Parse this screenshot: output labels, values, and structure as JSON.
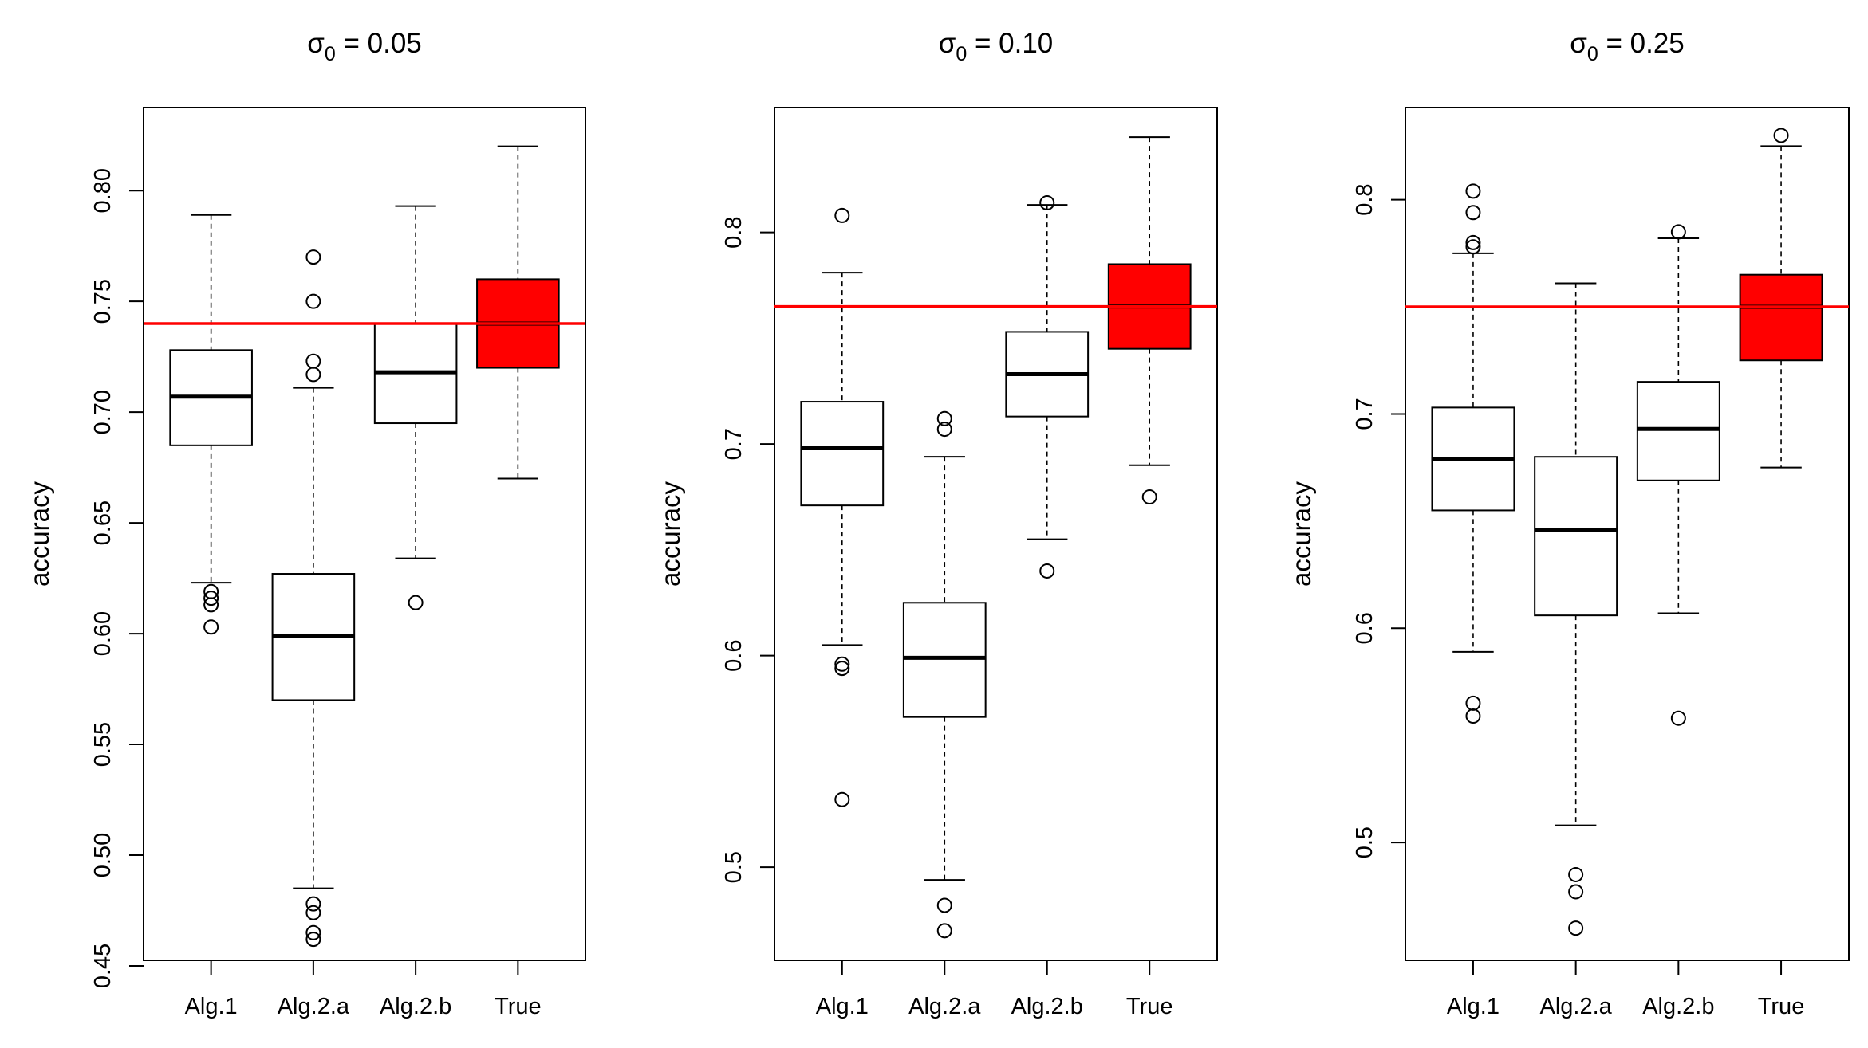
{
  "chart_data": [
    {
      "type": "box",
      "title_symbol": "σ",
      "title_subscript": "0",
      "title_rest": " = 0.05",
      "xlabel": "",
      "ylabel": "accuracy",
      "ylim": [
        0.4525,
        0.8375
      ],
      "yticks": [
        0.45,
        0.5,
        0.55,
        0.6,
        0.65,
        0.7,
        0.75,
        0.8
      ],
      "ytick_labels": [
        "0.45",
        "0.50",
        "0.55",
        "0.60",
        "0.65",
        "0.70",
        "0.75",
        "0.80"
      ],
      "categories": [
        "Alg.1",
        "Alg.2.a",
        "Alg.2.b",
        "True"
      ],
      "reference_line": 0.74,
      "boxes": [
        {
          "whisker_low": 0.623,
          "q1": 0.685,
          "median": 0.707,
          "q3": 0.728,
          "whisker_high": 0.789,
          "outliers": [
            0.603,
            0.613,
            0.616,
            0.619
          ],
          "fill": "#ffffff"
        },
        {
          "whisker_low": 0.485,
          "q1": 0.57,
          "median": 0.599,
          "q3": 0.627,
          "whisker_high": 0.711,
          "outliers": [
            0.462,
            0.465,
            0.474,
            0.478,
            0.717,
            0.723,
            0.75,
            0.77
          ],
          "fill": "#ffffff"
        },
        {
          "whisker_low": 0.634,
          "q1": 0.695,
          "median": 0.718,
          "q3": 0.74,
          "whisker_high": 0.793,
          "outliers": [
            0.614
          ],
          "fill": "#ffffff"
        },
        {
          "whisker_low": 0.67,
          "q1": 0.72,
          "median": 0.74,
          "q3": 0.76,
          "whisker_high": 0.82,
          "outliers": [],
          "fill": "#ff0000"
        }
      ]
    },
    {
      "type": "box",
      "title_symbol": "σ",
      "title_subscript": "0",
      "title_rest": " = 0.10",
      "xlabel": "",
      "ylabel": "accuracy",
      "ylim": [
        0.456,
        0.859
      ],
      "yticks": [
        0.5,
        0.6,
        0.7,
        0.8
      ],
      "ytick_labels": [
        "0.5",
        "0.6",
        "0.7",
        "0.8"
      ],
      "categories": [
        "Alg.1",
        "Alg.2.a",
        "Alg.2.b",
        "True"
      ],
      "reference_line": 0.765,
      "boxes": [
        {
          "whisker_low": 0.605,
          "q1": 0.671,
          "median": 0.698,
          "q3": 0.72,
          "whisker_high": 0.781,
          "outliers": [
            0.532,
            0.594,
            0.596,
            0.808
          ],
          "fill": "#ffffff"
        },
        {
          "whisker_low": 0.494,
          "q1": 0.571,
          "median": 0.599,
          "q3": 0.625,
          "whisker_high": 0.694,
          "outliers": [
            0.47,
            0.482,
            0.707,
            0.712
          ],
          "fill": "#ffffff"
        },
        {
          "whisker_low": 0.655,
          "q1": 0.713,
          "median": 0.733,
          "q3": 0.753,
          "whisker_high": 0.813,
          "outliers": [
            0.64,
            0.814
          ],
          "fill": "#ffffff"
        },
        {
          "whisker_low": 0.69,
          "q1": 0.745,
          "median": 0.765,
          "q3": 0.785,
          "whisker_high": 0.845,
          "outliers": [
            0.675
          ],
          "fill": "#ff0000"
        }
      ]
    },
    {
      "type": "box",
      "title_symbol": "σ",
      "title_subscript": "0",
      "title_rest": " = 0.25",
      "xlabel": "",
      "ylabel": "accuracy",
      "ylim": [
        0.445,
        0.843
      ],
      "yticks": [
        0.5,
        0.6,
        0.7,
        0.8
      ],
      "ytick_labels": [
        "0.5",
        "0.6",
        "0.7",
        "0.8"
      ],
      "categories": [
        "Alg.1",
        "Alg.2.a",
        "Alg.2.b",
        "True"
      ],
      "reference_line": 0.75,
      "boxes": [
        {
          "whisker_low": 0.589,
          "q1": 0.655,
          "median": 0.679,
          "q3": 0.703,
          "whisker_high": 0.775,
          "outliers": [
            0.559,
            0.565,
            0.778,
            0.78,
            0.794,
            0.804
          ],
          "fill": "#ffffff"
        },
        {
          "whisker_low": 0.508,
          "q1": 0.606,
          "median": 0.646,
          "q3": 0.68,
          "whisker_high": 0.761,
          "outliers": [
            0.46,
            0.477,
            0.485
          ],
          "fill": "#ffffff"
        },
        {
          "whisker_low": 0.607,
          "q1": 0.669,
          "median": 0.693,
          "q3": 0.715,
          "whisker_high": 0.782,
          "outliers": [
            0.558,
            0.785
          ],
          "fill": "#ffffff"
        },
        {
          "whisker_low": 0.675,
          "q1": 0.725,
          "median": 0.75,
          "q3": 0.765,
          "whisker_high": 0.825,
          "outliers": [
            0.83
          ],
          "fill": "#ff0000"
        }
      ]
    }
  ],
  "colors": {
    "reference_line": "#ff0000",
    "highlight_box": "#ff0000",
    "axis": "#000000"
  }
}
